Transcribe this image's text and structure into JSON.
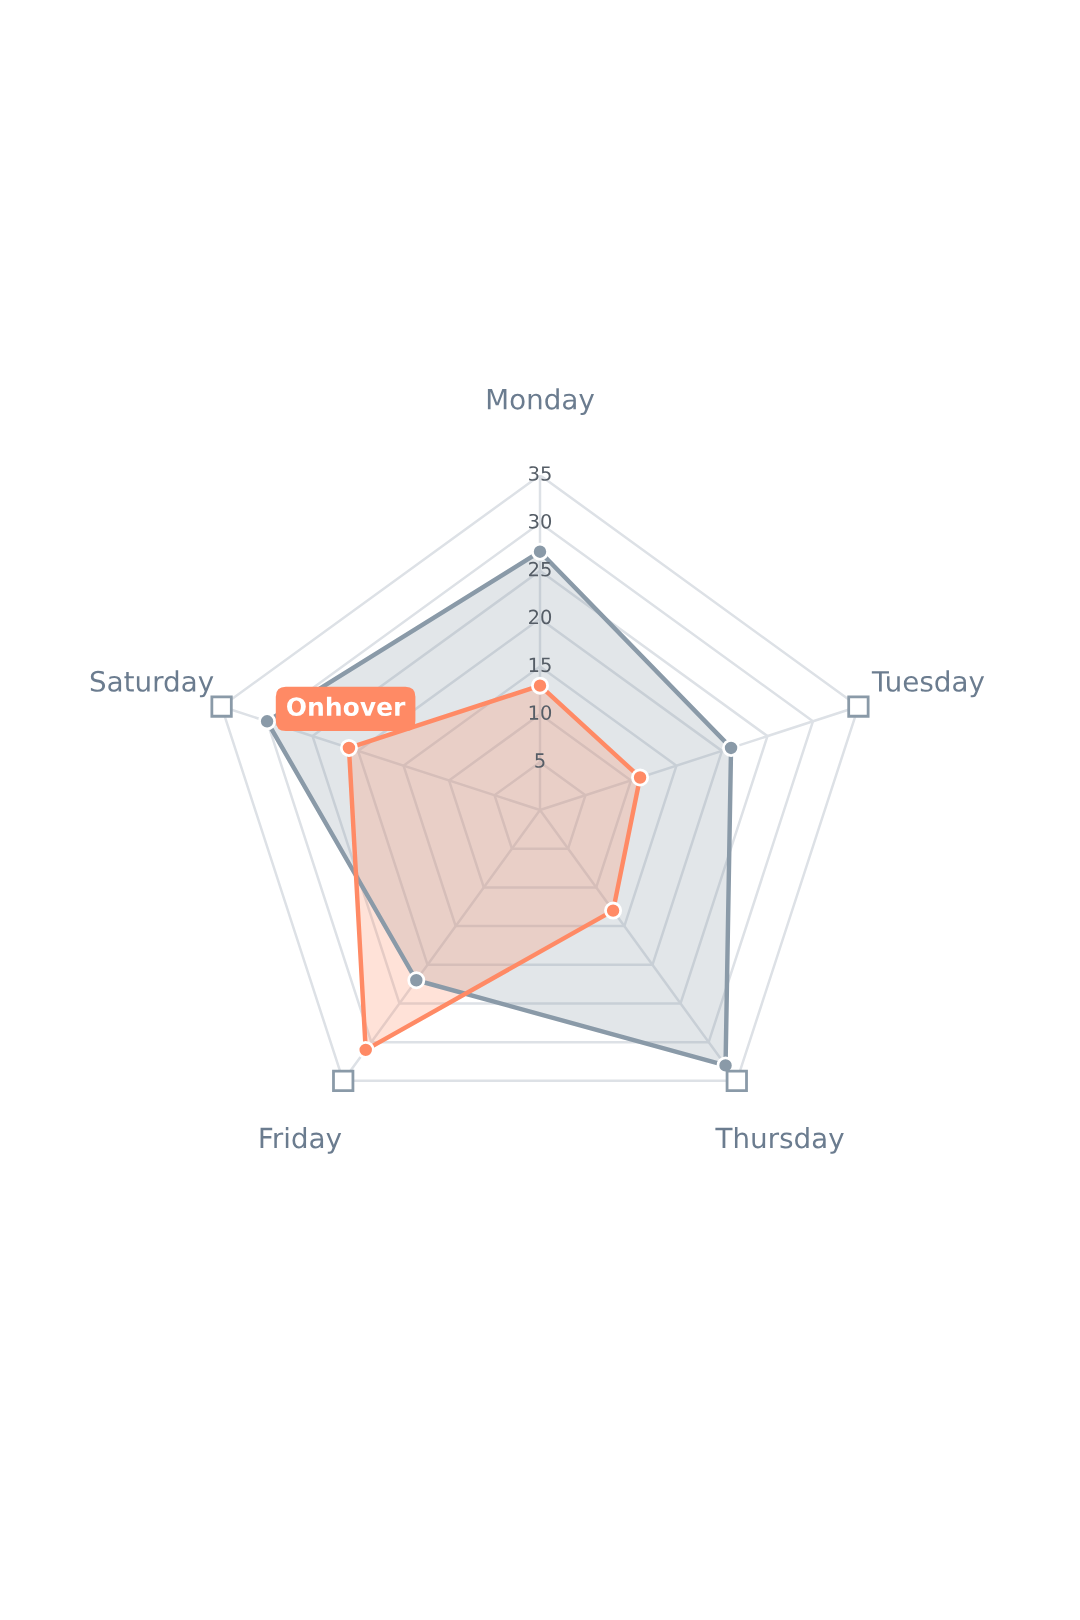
{
  "chart_data": {
    "type": "radar",
    "categories": [
      "Monday",
      "Tuesday",
      "Thursday",
      "Friday",
      "Saturday"
    ],
    "series": [
      {
        "color": "#8a9aa8",
        "values": [
          27,
          21,
          33,
          22,
          30
        ]
      },
      {
        "color": "#ff8a65",
        "values": [
          13,
          11,
          13,
          31,
          21
        ]
      }
    ],
    "ylim": [
      0,
      35
    ],
    "yticks": [
      5,
      10,
      15,
      20,
      25,
      30,
      35
    ],
    "grid": true,
    "marker": "circle",
    "annotations": [
      "Onhover"
    ]
  }
}
